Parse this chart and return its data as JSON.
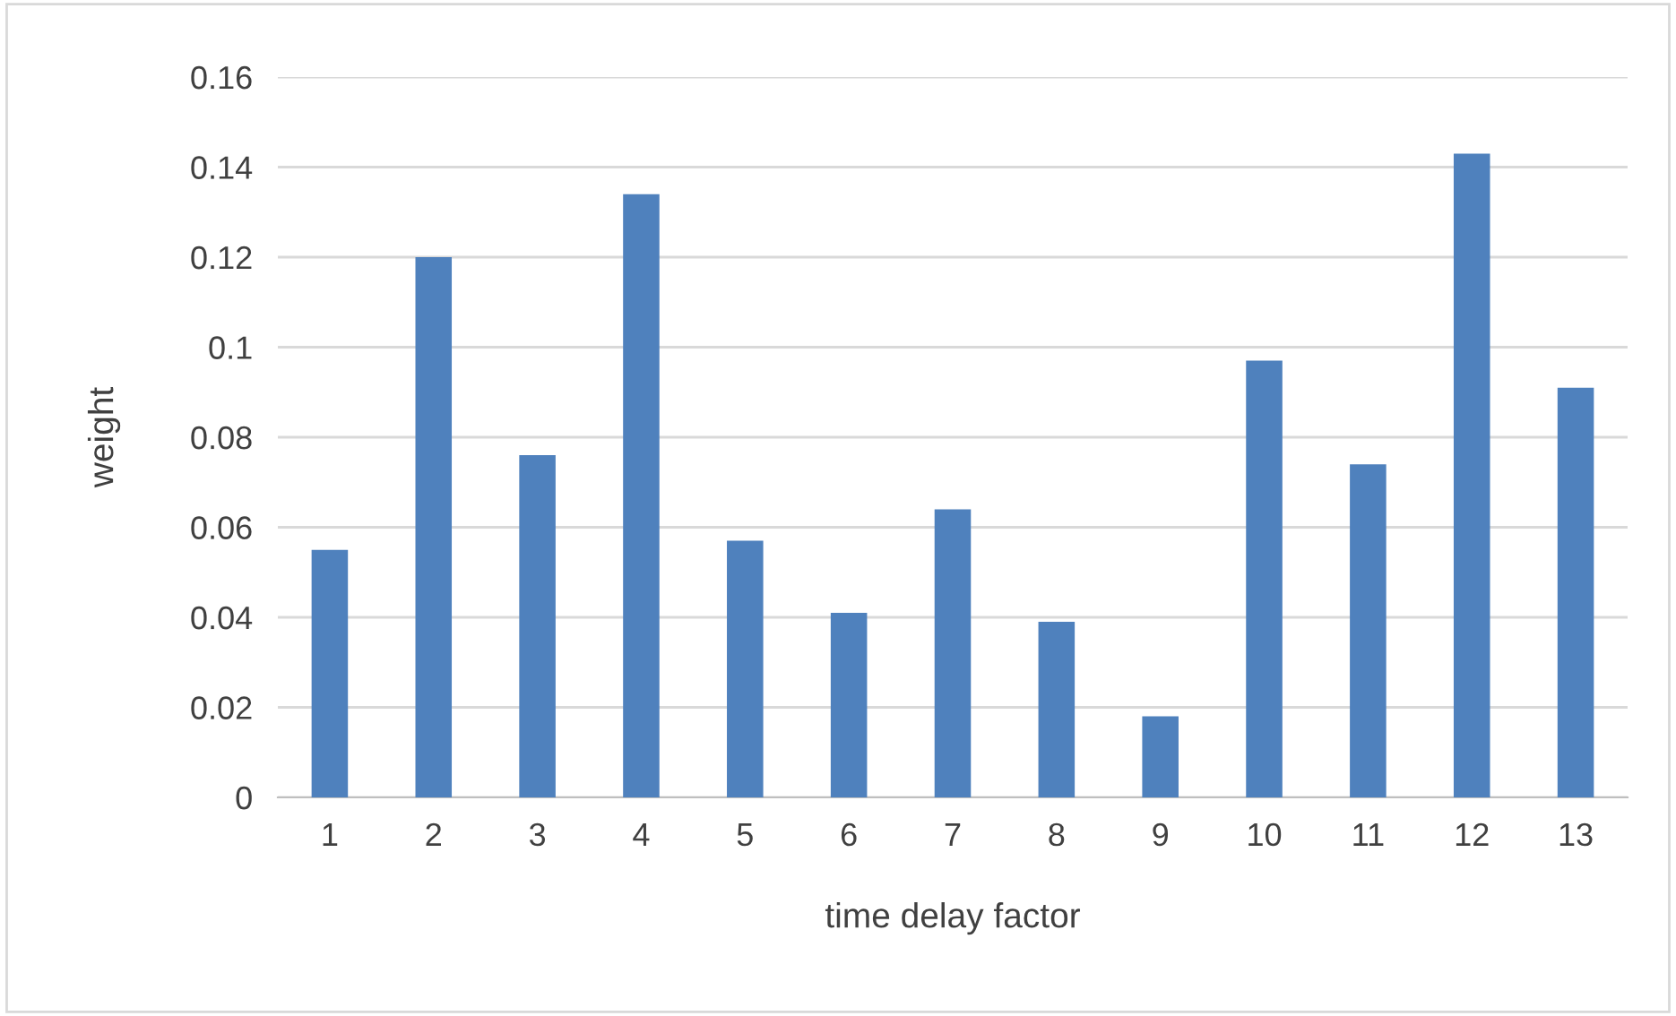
{
  "chart_data": {
    "type": "bar",
    "xlabel": "time delay factor",
    "ylabel": "weight",
    "categories": [
      "1",
      "2",
      "3",
      "4",
      "5",
      "6",
      "7",
      "8",
      "9",
      "10",
      "11",
      "12",
      "13"
    ],
    "values": [
      0.055,
      0.12,
      0.076,
      0.134,
      0.057,
      0.041,
      0.064,
      0.039,
      0.018,
      0.097,
      0.074,
      0.143,
      0.091
    ],
    "color": "#4f81bd",
    "ylim": [
      0,
      0.16
    ],
    "yticks": [
      0,
      {
        "value": 0.02,
        "label": "0.02"
      },
      {
        "value": 0.04,
        "label": "0.04"
      },
      {
        "value": 0.06,
        "label": "0.06"
      },
      {
        "value": 0.08,
        "label": "0.08"
      },
      0.1,
      {
        "value": 0.12,
        "label": "0.12"
      },
      {
        "value": 0.14,
        "label": "0.14"
      },
      {
        "value": 0.16,
        "label": "0.16"
      }
    ],
    "grid": "y",
    "legend": false
  }
}
